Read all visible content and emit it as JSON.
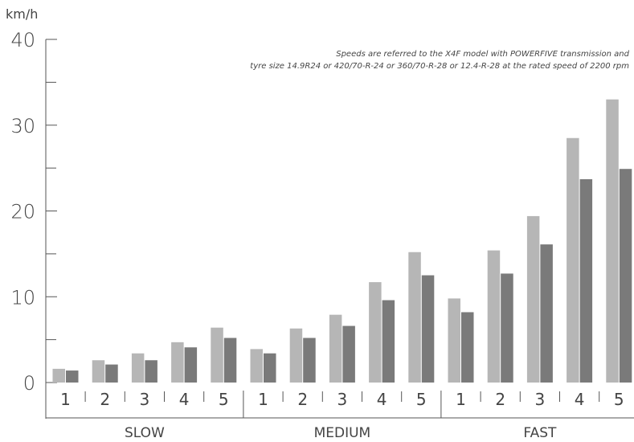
{
  "chart_data": {
    "type": "bar",
    "ylabel": "km/h",
    "ylim": [
      0,
      40
    ],
    "yticks": [
      "0",
      "10",
      "20",
      "30",
      "40"
    ],
    "grid": false,
    "note": [
      "Speeds are referred to the X4F model with POWERFIVE transmission and",
      "tyre size 14.9R24 or 420/70-R-24 or 360/70-R-28 or 12.4-R-28 at the rated speed of 2200 rpm"
    ],
    "groups": [
      "SLOW",
      "MEDIUM",
      "FAST"
    ],
    "categories": [
      "1",
      "2",
      "3",
      "4",
      "5",
      "1",
      "2",
      "3",
      "4",
      "5",
      "1",
      "2",
      "3",
      "4",
      "5"
    ],
    "series": [
      {
        "values": [
          1.6,
          2.6,
          3.4,
          4.7,
          6.4,
          3.9,
          6.3,
          7.9,
          11.7,
          15.2,
          9.8,
          15.4,
          19.4,
          28.5,
          33.0
        ]
      },
      {
        "values": [
          1.4,
          2.1,
          2.6,
          4.1,
          5.2,
          3.4,
          5.2,
          6.6,
          9.6,
          12.5,
          8.2,
          12.7,
          16.1,
          23.7,
          24.9
        ]
      }
    ],
    "colors": {
      "series_light": "#b6b6b6",
      "series_dark": "#7a7a7a",
      "axis": "#555555",
      "text": "#444444"
    }
  }
}
